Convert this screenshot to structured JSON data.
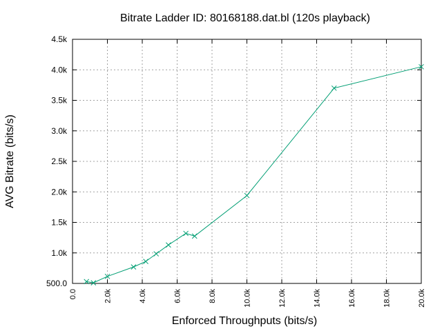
{
  "chart_data": {
    "type": "line",
    "title": "Bitrate Ladder ID: 80168188.dat.bl (120s playback)",
    "xlabel": "Enforced Throughputs (bits/s)",
    "ylabel": "AVG Bitrate (bits/s)",
    "xlim": [
      0,
      20000
    ],
    "ylim": [
      500,
      4500
    ],
    "x_ticks": [
      0,
      2000,
      4000,
      6000,
      8000,
      10000,
      12000,
      14000,
      16000,
      18000,
      20000
    ],
    "x_tick_labels": [
      "0.0",
      "2.0k",
      "4.0k",
      "6.0k",
      "8.0k",
      "10.0k",
      "12.0k",
      "14.0k",
      "16.0k",
      "18.0k",
      "20.0k"
    ],
    "y_ticks": [
      500,
      1000,
      1500,
      2000,
      2500,
      3000,
      3500,
      4000,
      4500
    ],
    "y_tick_labels": [
      "500.0",
      "1.0k",
      "1.5k",
      "2.0k",
      "2.5k",
      "3.0k",
      "3.5k",
      "4.0k",
      "4.5k"
    ],
    "grid": true,
    "legend": "none",
    "color": "#009e73",
    "marker": "x",
    "series": [
      {
        "x": [
          800,
          1200,
          2000,
          3500,
          4200,
          4800,
          5500,
          6500,
          7000,
          10000,
          15000,
          20000
        ],
        "y": [
          530,
          510,
          615,
          770,
          860,
          985,
          1130,
          1320,
          1275,
          1940,
          3700,
          4050
        ]
      }
    ]
  }
}
